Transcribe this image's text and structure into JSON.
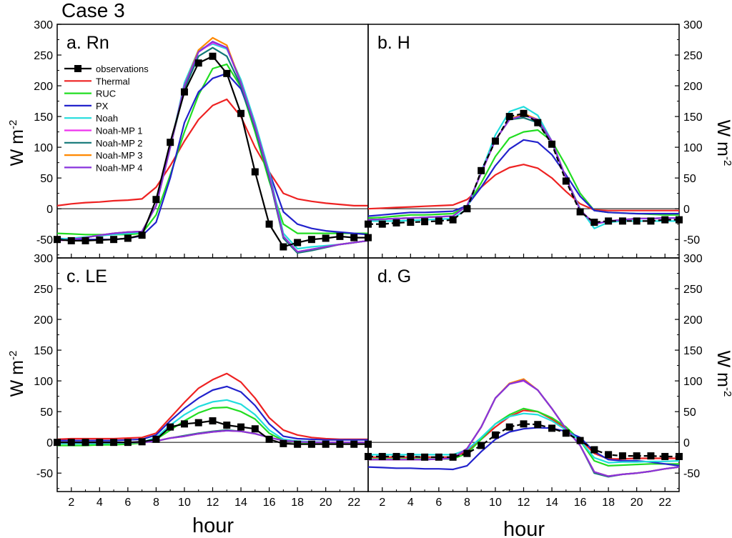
{
  "title": "Case 3",
  "chart_data": {
    "type": "line",
    "x": [
      1,
      2,
      3,
      4,
      5,
      6,
      7,
      8,
      9,
      10,
      11,
      12,
      13,
      14,
      15,
      16,
      17,
      18,
      19,
      20,
      21,
      22,
      23
    ],
    "xlim": [
      1,
      23
    ],
    "ylim": [
      -80,
      300
    ],
    "x_ticks": [
      2,
      4,
      6,
      8,
      10,
      12,
      14,
      16,
      18,
      20,
      22
    ],
    "y_ticks": [
      -50,
      0,
      50,
      100,
      150,
      200,
      250,
      300
    ],
    "xlabel": "hour",
    "ylabel": "W m",
    "ylabel_sup": "-2",
    "colors": {
      "observations": "#000000",
      "Thermal": "#ee2222",
      "RUC": "#22dd22",
      "PX": "#2222cc",
      "Noah": "#22dddd",
      "Noah-MP 1": "#ee33ee",
      "Noah-MP 2": "#117777",
      "Noah-MP 3": "#ff8800",
      "Noah-MP 4": "#8833dd"
    },
    "legend": [
      "observations",
      "Thermal",
      "RUC",
      "PX",
      "Noah",
      "Noah-MP 1",
      "Noah-MP 2",
      "Noah-MP 3",
      "Noah-MP 4"
    ],
    "panels": [
      {
        "label": "a. Rn",
        "series": [
          {
            "name": "observations",
            "values": [
              -50,
              -52,
              -52,
              -51,
              -50,
              -48,
              -43,
              15,
              108,
              190,
              237,
              248,
              220,
              155,
              60,
              -25,
              -62,
              -55,
              -50,
              -48,
              -45,
              -47,
              -47
            ]
          },
          {
            "name": "Thermal",
            "values": [
              5,
              8,
              10,
              11,
              13,
              14,
              16,
              35,
              70,
              110,
              145,
              168,
              178,
              150,
              100,
              60,
              25,
              16,
              12,
              9,
              7,
              5,
              5
            ]
          },
          {
            "name": "RUC",
            "values": [
              -40,
              -41,
              -42,
              -42,
              -42,
              -42,
              -40,
              -10,
              55,
              125,
              185,
              228,
              235,
              198,
              125,
              45,
              -25,
              -40,
              -40,
              -40,
              -40,
              -40,
              -40
            ]
          },
          {
            "name": "PX",
            "values": [
              -48,
              -50,
              -50,
              -50,
              -50,
              -48,
              -44,
              -22,
              50,
              140,
              190,
              212,
              220,
              195,
              135,
              60,
              -5,
              -25,
              -32,
              -36,
              -38,
              -40,
              -42
            ]
          },
          {
            "name": "Noah",
            "values": [
              -50,
              -48,
              -46,
              -44,
              -42,
              -40,
              -38,
              5,
              100,
              205,
              258,
              268,
              260,
              210,
              140,
              60,
              -40,
              -65,
              -62,
              -60,
              -58,
              -55,
              -52
            ]
          },
          {
            "name": "Noah-MP 1",
            "values": [
              -52,
              -50,
              -47,
              -43,
              -40,
              -38,
              -37,
              5,
              100,
              200,
              255,
              270,
              262,
              205,
              135,
              55,
              -45,
              -70,
              -66,
              -62,
              -58,
              -55,
              -52
            ]
          },
          {
            "name": "Noah-MP 2",
            "values": [
              -52,
              -50,
              -47,
              -43,
              -40,
              -38,
              -37,
              5,
              100,
              195,
              248,
              262,
              248,
              200,
              130,
              50,
              -48,
              -72,
              -68,
              -63,
              -58,
              -55,
              -52
            ]
          },
          {
            "name": "Noah-MP 3",
            "values": [
              -52,
              -50,
              -47,
              -43,
              -40,
              -38,
              -37,
              5,
              100,
              200,
              258,
              278,
              266,
              205,
              135,
              55,
              -45,
              -70,
              -66,
              -62,
              -58,
              -55,
              -52
            ]
          },
          {
            "name": "Noah-MP 4",
            "values": [
              -52,
              -50,
              -47,
              -43,
              -40,
              -38,
              -37,
              5,
              100,
              200,
              255,
              272,
              262,
              205,
              135,
              55,
              -45,
              -70,
              -66,
              -62,
              -58,
              -55,
              -52
            ]
          }
        ]
      },
      {
        "label": "b. H",
        "series": [
          {
            "name": "observations",
            "values": [
              -25,
              -25,
              -23,
              -22,
              -21,
              -20,
              -18,
              0,
              62,
              110,
              150,
              155,
              140,
              105,
              45,
              -5,
              -22,
              -20,
              -20,
              -20,
              -20,
              -18,
              -18
            ]
          },
          {
            "name": "Thermal",
            "values": [
              0,
              1,
              2,
              3,
              4,
              5,
              6,
              15,
              35,
              55,
              67,
              72,
              66,
              50,
              28,
              8,
              -2,
              -3,
              -3,
              -3,
              -3,
              -3,
              -3
            ]
          },
          {
            "name": "RUC",
            "values": [
              -15,
              -14,
              -12,
              -10,
              -10,
              -9,
              -8,
              5,
              42,
              85,
              115,
              125,
              128,
              110,
              70,
              25,
              -3,
              -6,
              -7,
              -8,
              -9,
              -10,
              -10
            ]
          },
          {
            "name": "PX",
            "values": [
              -12,
              -10,
              -8,
              -6,
              -6,
              -5,
              -4,
              5,
              35,
              70,
              97,
              112,
              108,
              88,
              55,
              20,
              -3,
              -6,
              -7,
              -8,
              -8,
              -8,
              -8
            ]
          },
          {
            "name": "Noah",
            "values": [
              -20,
              -20,
              -20,
              -19,
              -18,
              -17,
              -16,
              0,
              60,
              120,
              158,
              166,
              152,
              110,
              50,
              0,
              -32,
              -22,
              -20,
              -20,
              -20,
              -20,
              -20
            ]
          },
          {
            "name": "Noah-MP 1",
            "values": [
              -18,
              -17,
              -16,
              -15,
              -14,
              -13,
              -12,
              5,
              58,
              112,
              145,
              153,
              145,
              110,
              50,
              -2,
              -25,
              -20,
              -18,
              -16,
              -16,
              -15,
              -15
            ]
          },
          {
            "name": "Noah-MP 2",
            "values": [
              -18,
              -17,
              -16,
              -15,
              -14,
              -13,
              -12,
              5,
              58,
              112,
              145,
              148,
              140,
              108,
              50,
              -2,
              -25,
              -20,
              -18,
              -16,
              -16,
              -15,
              -15
            ]
          },
          {
            "name": "Noah-MP 3",
            "values": [
              -18,
              -17,
              -16,
              -15,
              -14,
              -13,
              -12,
              5,
              58,
              112,
              145,
              155,
              145,
              110,
              50,
              -2,
              -25,
              -20,
              -18,
              -16,
              -16,
              -15,
              -15
            ]
          },
          {
            "name": "Noah-MP 4",
            "values": [
              -18,
              -17,
              -16,
              -15,
              -14,
              -13,
              -12,
              5,
              58,
              112,
              145,
              152,
              145,
              110,
              50,
              -2,
              -25,
              -20,
              -18,
              -16,
              -16,
              -15,
              -15
            ]
          }
        ]
      },
      {
        "label": "c. LE",
        "series": [
          {
            "name": "observations",
            "values": [
              0,
              0,
              0,
              0,
              0,
              0,
              1,
              5,
              25,
              30,
              32,
              35,
              28,
              25,
              22,
              5,
              -2,
              -3,
              -3,
              -3,
              -3,
              -3,
              -3
            ]
          },
          {
            "name": "Thermal",
            "values": [
              5,
              6,
              6,
              6,
              6,
              7,
              8,
              15,
              40,
              65,
              88,
              102,
              112,
              98,
              72,
              40,
              20,
              12,
              8,
              6,
              5,
              5,
              5
            ]
          },
          {
            "name": "RUC",
            "values": [
              -5,
              -5,
              -5,
              -4,
              -4,
              -3,
              -1,
              5,
              20,
              35,
              48,
              56,
              57,
              50,
              38,
              15,
              3,
              0,
              -1,
              -1,
              -1,
              -2,
              -2
            ]
          },
          {
            "name": "PX",
            "values": [
              3,
              3,
              3,
              3,
              3,
              4,
              5,
              12,
              35,
              55,
              72,
              85,
              91,
              82,
              60,
              30,
              10,
              6,
              5,
              4,
              4,
              4,
              4
            ]
          },
          {
            "name": "Noah",
            "values": [
              -2,
              -2,
              -2,
              -2,
              -1,
              -1,
              0,
              8,
              28,
              45,
              58,
              66,
              69,
              62,
              45,
              20,
              5,
              2,
              1,
              0,
              0,
              0,
              0
            ]
          },
          {
            "name": "Noah-MP 1",
            "values": [
              0,
              0,
              0,
              0,
              0,
              0,
              0,
              2,
              7,
              10,
              14,
              17,
              19,
              18,
              14,
              8,
              3,
              1,
              0,
              0,
              0,
              0,
              0
            ]
          },
          {
            "name": "Noah-MP 2",
            "values": [
              0,
              0,
              0,
              0,
              0,
              0,
              0,
              2,
              7,
              11,
              15,
              18,
              20,
              18,
              14,
              8,
              3,
              1,
              0,
              0,
              0,
              0,
              0
            ]
          },
          {
            "name": "Noah-MP 3",
            "values": [
              0,
              0,
              0,
              0,
              0,
              0,
              0,
              2,
              7,
              10,
              14,
              17,
              19,
              18,
              14,
              8,
              3,
              1,
              0,
              0,
              0,
              0,
              0
            ]
          },
          {
            "name": "Noah-MP 4",
            "values": [
              0,
              0,
              0,
              0,
              0,
              0,
              0,
              2,
              7,
              10,
              14,
              17,
              19,
              18,
              14,
              8,
              3,
              1,
              0,
              0,
              0,
              0,
              0
            ]
          }
        ]
      },
      {
        "label": "d. G",
        "series": [
          {
            "name": "observations",
            "values": [
              -23,
              -23,
              -23,
              -23,
              -24,
              -24,
              -24,
              -18,
              -5,
              12,
              25,
              30,
              29,
              23,
              15,
              3,
              -12,
              -20,
              -22,
              -22,
              -22,
              -23,
              -23
            ]
          },
          {
            "name": "Thermal",
            "values": [
              -24,
              -24,
              -24,
              -24,
              -24,
              -24,
              -24,
              -15,
              5,
              25,
              42,
              52,
              50,
              38,
              22,
              5,
              -18,
              -27,
              -27,
              -26,
              -26,
              -26,
              -26
            ]
          },
          {
            "name": "RUC",
            "values": [
              -27,
              -27,
              -27,
              -27,
              -27,
              -27,
              -27,
              -18,
              5,
              30,
              45,
              55,
              50,
              40,
              25,
              3,
              -30,
              -38,
              -37,
              -36,
              -35,
              -35,
              -35
            ]
          },
          {
            "name": "PX",
            "values": [
              -40,
              -41,
              -42,
              -42,
              -43,
              -43,
              -44,
              -38,
              -15,
              5,
              17,
              22,
              24,
              23,
              18,
              8,
              -15,
              -28,
              -30,
              -30,
              -32,
              -35,
              -38
            ]
          },
          {
            "name": "Noah",
            "values": [
              -20,
              -20,
              -20,
              -20,
              -20,
              -20,
              -20,
              -12,
              8,
              30,
              42,
              47,
              45,
              35,
              20,
              3,
              -25,
              -33,
              -32,
              -32,
              -31,
              -31,
              -30
            ]
          },
          {
            "name": "Noah-MP 1",
            "values": [
              -28,
              -28,
              -28,
              -28,
              -28,
              -27,
              -26,
              -10,
              25,
              72,
              95,
              100,
              85,
              55,
              22,
              -5,
              -48,
              -55,
              -52,
              -50,
              -47,
              -43,
              -40
            ]
          },
          {
            "name": "Noah-MP 2",
            "values": [
              -28,
              -28,
              -28,
              -28,
              -28,
              -27,
              -26,
              -10,
              25,
              72,
              95,
              101,
              85,
              55,
              22,
              -5,
              -50,
              -56,
              -52,
              -50,
              -47,
              -43,
              -40
            ]
          },
          {
            "name": "Noah-MP 3",
            "values": [
              -28,
              -28,
              -28,
              -28,
              -28,
              -27,
              -26,
              -10,
              25,
              72,
              96,
              103,
              85,
              55,
              22,
              -5,
              -48,
              -55,
              -52,
              -50,
              -47,
              -43,
              -40
            ]
          },
          {
            "name": "Noah-MP 4",
            "values": [
              -28,
              -28,
              -28,
              -28,
              -28,
              -27,
              -26,
              -10,
              25,
              72,
              95,
              101,
              85,
              55,
              22,
              -5,
              -48,
              -55,
              -52,
              -50,
              -47,
              -43,
              -40
            ]
          }
        ]
      }
    ]
  }
}
